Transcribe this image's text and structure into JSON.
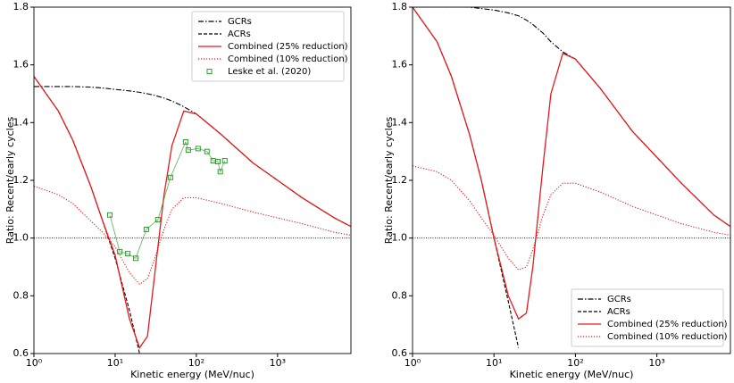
{
  "chart_data": [
    {
      "type": "line",
      "xlabel": "Kinetic energy (MeV/nuc)",
      "ylabel": "Ratio: Recent/early cycles",
      "xscale": "log",
      "xlim": [
        1,
        8000
      ],
      "xticks": [
        {
          "value": 1,
          "label": "10⁰"
        },
        {
          "value": 10,
          "label": "10¹"
        },
        {
          "value": 100,
          "label": "10²"
        },
        {
          "value": 1000,
          "label": "10³"
        }
      ],
      "ylim": [
        0.6,
        1.8
      ],
      "yticks": [
        0.6,
        0.8,
        {
          "value": 1,
          "label": "1.0"
        },
        1.2,
        1.4,
        1.6,
        1.8
      ],
      "hline": 1,
      "legend": "upper right",
      "x": [
        1,
        2,
        3,
        5,
        7,
        10,
        15,
        20,
        25,
        30,
        40,
        50,
        70,
        100,
        200,
        500,
        1000,
        2000,
        5000,
        8000
      ],
      "series": [
        {
          "name": "GCRs",
          "color": "#000000",
          "style": "dashdot",
          "values": [
            1.525,
            1.525,
            1.525,
            1.523,
            1.52,
            1.515,
            1.51,
            1.505,
            1.5,
            1.495,
            1.485,
            1.475,
            1.455,
            1.43,
            1.36,
            1.26,
            1.2,
            1.14,
            1.07,
            1.04
          ]
        },
        {
          "name": "ACRs",
          "color": "#000000",
          "style": "dashed",
          "values": [
            1.56,
            1.44,
            1.34,
            1.18,
            1.06,
            0.93,
            0.75,
            0.6,
            null,
            null,
            null,
            null,
            null,
            null,
            null,
            null,
            null,
            null,
            null,
            null
          ]
        },
        {
          "name": "Combined (25% reduction)",
          "color": "#e41a1c",
          "style": "solid",
          "values": [
            1.56,
            1.44,
            1.34,
            1.18,
            1.06,
            0.94,
            0.72,
            0.62,
            0.66,
            0.85,
            1.15,
            1.32,
            1.44,
            1.43,
            1.36,
            1.26,
            1.2,
            1.14,
            1.07,
            1.04
          ]
        },
        {
          "name": "Combined (10% reduction)",
          "color": "#e41a1c",
          "style": "dotted",
          "values": [
            1.18,
            1.15,
            1.12,
            1.06,
            1.02,
            0.97,
            0.88,
            0.84,
            0.86,
            0.92,
            1.03,
            1.1,
            1.14,
            1.14,
            1.12,
            1.09,
            1.07,
            1.05,
            1.02,
            1.01
          ]
        },
        {
          "name": "Leske et al. (2020)",
          "color": "#2ca02c",
          "style": "markers",
          "x": [
            8.6,
            11.4,
            14.3,
            17.9,
            24.2,
            33.6,
            48,
            73.7,
            79.5,
            105,
            135,
            161,
            184,
            197,
            224
          ],
          "values": [
            1.08,
            0.953,
            0.946,
            0.93,
            1.03,
            1.064,
            1.21,
            1.333,
            1.305,
            1.31,
            1.3,
            1.268,
            1.265,
            1.23,
            1.268
          ]
        }
      ]
    },
    {
      "type": "line",
      "xlabel": "Kinetic energy (MeV/nuc)",
      "ylabel": "Ratio: Recent/early cycles",
      "xscale": "log",
      "xlim": [
        1,
        8000
      ],
      "xticks": [
        {
          "value": 1,
          "label": "10⁰"
        },
        {
          "value": 10,
          "label": "10¹"
        },
        {
          "value": 100,
          "label": "10²"
        },
        {
          "value": 1000,
          "label": "10³"
        }
      ],
      "ylim": [
        0.6,
        1.8
      ],
      "yticks": [
        0.6,
        0.8,
        {
          "value": 1,
          "label": "1.0"
        },
        1.2,
        1.4,
        1.6,
        1.8
      ],
      "hline": 1,
      "legend": "lower right",
      "x": [
        1,
        2,
        3,
        5,
        7,
        10,
        15,
        20,
        25,
        30,
        40,
        50,
        70,
        100,
        200,
        500,
        1000,
        2000,
        5000,
        8000
      ],
      "series": [
        {
          "name": "GCRs",
          "color": "#000000",
          "style": "dashdot",
          "values": [
            1.8,
            1.8,
            1.8,
            1.8,
            1.795,
            1.79,
            1.78,
            1.77,
            1.755,
            1.74,
            1.71,
            1.68,
            1.645,
            1.62,
            1.52,
            1.37,
            1.28,
            1.19,
            1.08,
            1.04
          ]
        },
        {
          "name": "ACRs",
          "color": "#000000",
          "style": "dashed",
          "values": [
            1.8,
            1.68,
            1.56,
            1.36,
            1.2,
            1.0,
            0.78,
            0.62,
            null,
            null,
            null,
            null,
            null,
            null,
            null,
            null,
            null,
            null,
            null,
            null
          ]
        },
        {
          "name": "Combined (25% reduction)",
          "color": "#e41a1c",
          "style": "solid",
          "values": [
            1.8,
            1.68,
            1.56,
            1.36,
            1.2,
            1.0,
            0.8,
            0.72,
            0.74,
            0.9,
            1.25,
            1.5,
            1.64,
            1.62,
            1.52,
            1.37,
            1.28,
            1.19,
            1.08,
            1.04
          ]
        },
        {
          "name": "Combined (10% reduction)",
          "color": "#e41a1c",
          "style": "dotted",
          "values": [
            1.25,
            1.23,
            1.2,
            1.13,
            1.07,
            1.01,
            0.93,
            0.89,
            0.9,
            0.96,
            1.08,
            1.15,
            1.19,
            1.19,
            1.16,
            1.11,
            1.08,
            1.05,
            1.02,
            1.01
          ]
        }
      ]
    }
  ]
}
